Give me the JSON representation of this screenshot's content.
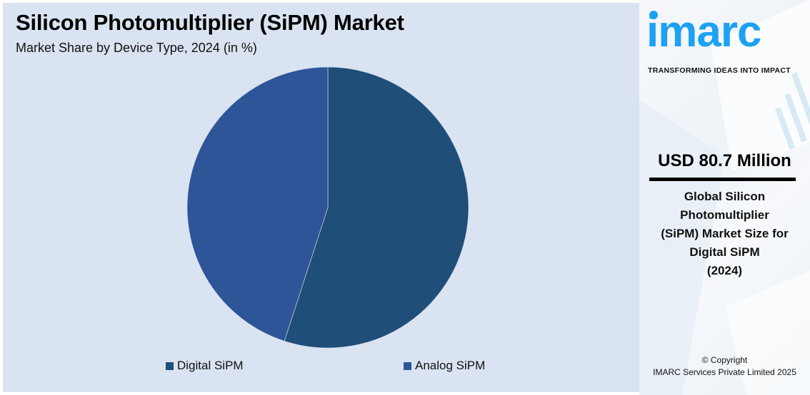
{
  "header": {
    "title": "Silicon Photomultiplier (SiPM) Market",
    "subtitle": "Market Share by Device Type, 2024 (in %)"
  },
  "chart_data": {
    "type": "pie",
    "title": "Silicon Photomultiplier (SiPM) Market",
    "subtitle": "Market Share by Device Type, 2024 (in %)",
    "categories": [
      "Digital SiPM",
      "Analog SiPM"
    ],
    "values": [
      55,
      45
    ],
    "colors": [
      "#1f4e79",
      "#2e5597"
    ],
    "legend_position": "bottom",
    "start_angle_deg": 0,
    "direction": "clockwise"
  },
  "legend": [
    {
      "label": "Digital SiPM",
      "color": "#1f4e79"
    },
    {
      "label": "Analog SiPM",
      "color": "#2e5597"
    }
  ],
  "sidebar": {
    "logo_text": "imarc",
    "tagline": "TRANSFORMING IDEAS INTO IMPACT",
    "headline_value": "USD 80.7 Million",
    "description_lines": [
      "Global Silicon",
      "Photomultiplier",
      "(SiPM) Market Size for",
      "Digital SiPM",
      "(2024)"
    ],
    "copyright_line1": "© Copyright",
    "copyright_line2": "IMARC Services Private Limited 2025",
    "brand_color": "#1da1f2"
  }
}
